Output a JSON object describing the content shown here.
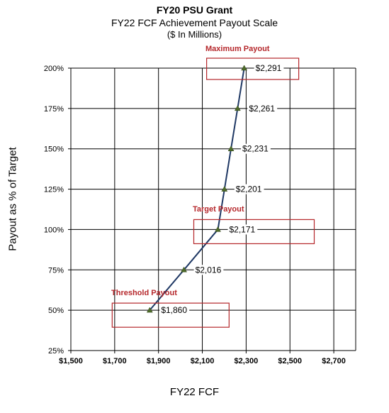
{
  "chart_data": {
    "type": "line",
    "title": "FY20 PSU Grant",
    "subtitle": "FY22 FCF Achievement Payout Scale",
    "subtitle2": "($ In Millions)",
    "xlabel": "FY22 FCF",
    "ylabel": "Payout as % of Target",
    "xlim": [
      1500,
      2800
    ],
    "ylim": [
      25,
      200
    ],
    "x_ticks": [
      "$1,500",
      "$1,700",
      "$1,900",
      "$2,100",
      "$2,300",
      "$2,500",
      "$2,700"
    ],
    "x_tick_values": [
      1500,
      1700,
      1900,
      2100,
      2300,
      2500,
      2700
    ],
    "y_ticks": [
      "25%",
      "50%",
      "75%",
      "100%",
      "125%",
      "150%",
      "175%",
      "200%"
    ],
    "y_tick_values": [
      25,
      50,
      75,
      100,
      125,
      150,
      175,
      200
    ],
    "grid": true,
    "points": [
      {
        "x": 1860,
        "y": 50,
        "label": "$1,860"
      },
      {
        "x": 2016,
        "y": 75,
        "label": "$2,016"
      },
      {
        "x": 2171,
        "y": 100,
        "label": "$2,171"
      },
      {
        "x": 2201,
        "y": 125,
        "label": "$2,201"
      },
      {
        "x": 2231,
        "y": 150,
        "label": "$2,231"
      },
      {
        "x": 2261,
        "y": 175,
        "label": "$2,261"
      },
      {
        "x": 2291,
        "y": 200,
        "label": "$2,291"
      }
    ],
    "annotations": [
      {
        "text": "Threshold Payout",
        "point_index": 0
      },
      {
        "text": "Target Payout",
        "point_index": 2
      },
      {
        "text": "Maximum Payout",
        "point_index": 6
      }
    ],
    "colors": {
      "line": "#1f3864",
      "marker": "#4e6b2a",
      "annotation": "#b5272b",
      "grid": "#000000"
    }
  }
}
